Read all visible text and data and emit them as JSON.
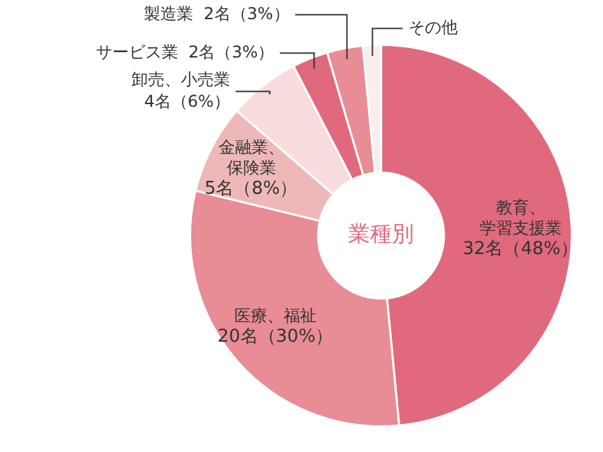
{
  "chart_data": {
    "type": "donut",
    "title": "業種別",
    "categories": [
      "教育、学習支援業",
      "医療、福祉",
      "金融業、保険業",
      "卸売、小売業",
      "サービス業",
      "製造業",
      "その他"
    ],
    "values": [
      32,
      20,
      5,
      4,
      2,
      2,
      1
    ],
    "value_labels": [
      "32名（48%）",
      "20名（30%）",
      "5名（8%）",
      "4名（6%）",
      "2名（3%）",
      "2名（3%）",
      null
    ],
    "colors": [
      "#e0697d",
      "#e88c95",
      "#efb8b8",
      "#f7dcdb",
      "#e0697d",
      "#e88c95",
      "#f8eeee"
    ]
  }
}
